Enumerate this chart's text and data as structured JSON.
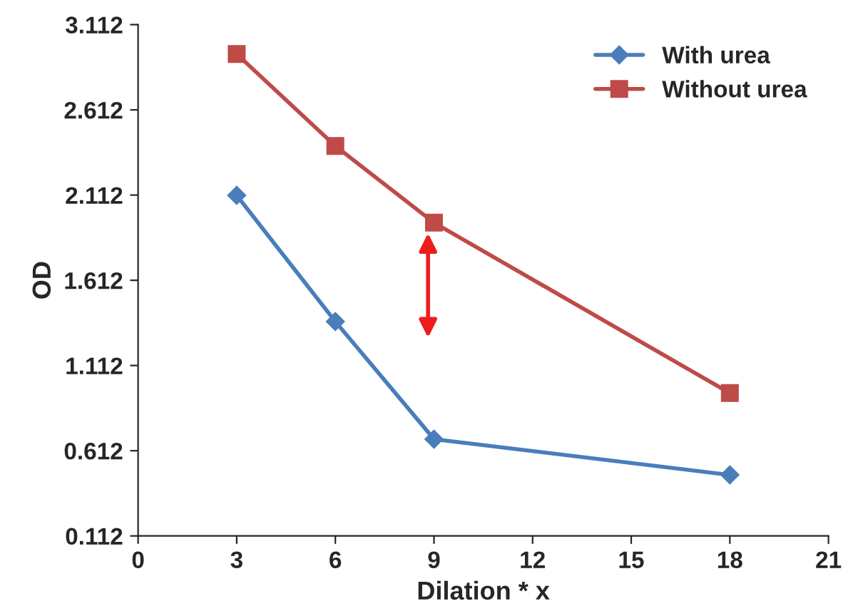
{
  "chart_data": {
    "type": "line",
    "xlabel": "Dilation * x",
    "ylabel": "OD",
    "x": [
      3,
      6,
      9,
      18
    ],
    "series": [
      {
        "name": "With urea",
        "color": "#4a7ebb",
        "values": [
          2.11,
          1.37,
          0.68,
          0.47
        ],
        "marker": "diamond"
      },
      {
        "name": "Without urea",
        "color": "#be4b48",
        "values": [
          2.94,
          2.4,
          1.95,
          0.95
        ],
        "marker": "square"
      }
    ],
    "xlim": [
      0,
      21
    ],
    "xticks": [
      0,
      3,
      6,
      9,
      12,
      15,
      18,
      21
    ],
    "ylim": [
      0.112,
      3.112
    ],
    "yticks": [
      0.112,
      0.612,
      1.112,
      1.612,
      2.112,
      2.612,
      3.112
    ],
    "grid": false,
    "legend": "top right",
    "line_style": "solid"
  }
}
